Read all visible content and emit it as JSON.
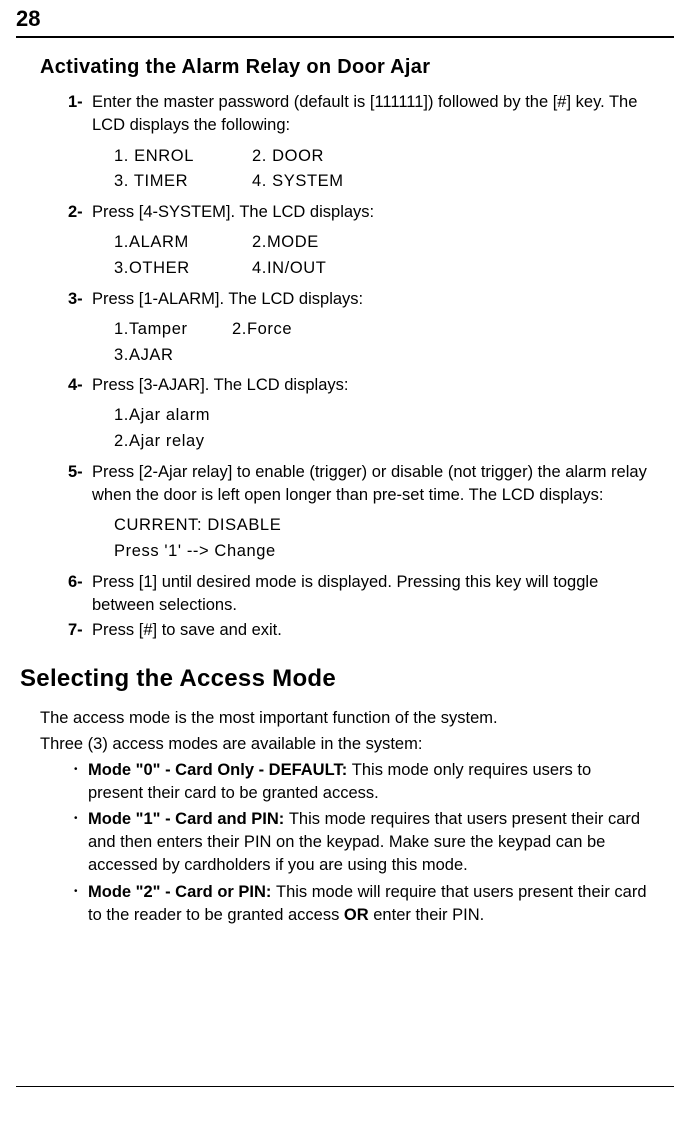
{
  "page_number": "28",
  "section_heading": "Activating the Alarm Relay on Door Ajar",
  "steps": [
    {
      "num": "1-",
      "text": "Enter the master password (default is [111111]) followed by the [#] key. The LCD displays the following:",
      "lcd": [
        [
          "1. ENROL",
          "2. DOOR"
        ],
        [
          "3. TIMER",
          "4. SYSTEM"
        ]
      ]
    },
    {
      "num": "2-",
      "text": "Press [4-SYSTEM]. The LCD displays:",
      "lcd": [
        [
          "1.ALARM",
          "2.MODE"
        ],
        [
          "3.OTHER",
          "4.IN/OUT"
        ]
      ]
    },
    {
      "num": "3-",
      "text": "Press [1-ALARM]. The LCD displays:",
      "lcd": [
        [
          "1.Tamper",
          "2.Force"
        ],
        [
          "3.AJAR",
          ""
        ]
      ]
    },
    {
      "num": "4-",
      "text": "Press [3-AJAR]. The LCD displays:",
      "lcd_single": [
        "1.Ajar alarm",
        "2.Ajar relay"
      ]
    },
    {
      "num": "5-",
      "text": "Press [2-Ajar relay] to enable (trigger) or disable (not trigger) the alarm relay when the door is left open longer than pre-set time. The LCD displays:",
      "lcd_single": [
        "CURRENT: DISABLE",
        "Press '1' --> Change"
      ]
    },
    {
      "num": "6-",
      "text": "Press [1] until desired mode is displayed. Pressing this key will toggle between selections."
    },
    {
      "num": "7-",
      "text": "Press [#] to save and exit."
    }
  ],
  "mode_heading": "Selecting the Access Mode",
  "intro1": "The access mode is the most important function of the system.",
  "intro2": "Three (3) access modes are available in the system:",
  "modes": [
    {
      "bold": "Mode \"0\" - Card Only - DEFAULT: ",
      "rest": "This mode only requires users to present their card to be granted access."
    },
    {
      "bold": "Mode \"1\" - Card and PIN: ",
      "rest": "This mode requires that users present their card and then enters their PIN on the keypad. Make sure the keypad can be accessed by cardholders if you are using this mode."
    },
    {
      "bold": "Mode \"2\" - Card or PIN: ",
      "rest_pre": "This mode will require that users present their card to the reader to be granted access ",
      "bold2": "OR",
      "rest_post": " enter their PIN."
    }
  ]
}
